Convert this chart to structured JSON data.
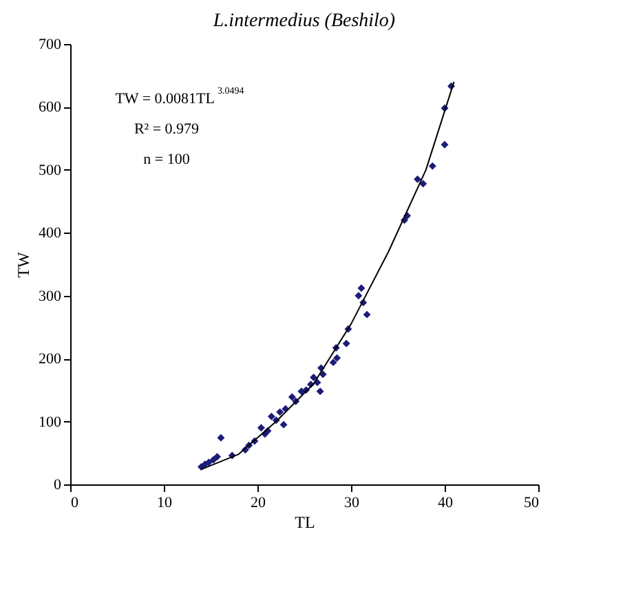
{
  "chart_data": {
    "type": "scatter",
    "title": "L.intermedius (Beshilo)",
    "xlabel": "TL",
    "ylabel": "TW",
    "xlim": [
      0,
      50
    ],
    "xticks": [
      0,
      10,
      20,
      30,
      40,
      50
    ],
    "ylim": [
      0,
      700
    ],
    "yticks": [
      0,
      100,
      200,
      300,
      400,
      500,
      600,
      700
    ],
    "grid": false,
    "marker": "diamond",
    "annotations": [
      "TW = 0.0081TL$^{3.0494}$",
      "R² = 0.979",
      "n = 100"
    ],
    "series": [
      {
        "color": "#1c1c7a",
        "x": [
          40.7,
          40.0,
          40.0,
          38.7,
          37.1,
          37.7,
          35.7,
          36.0,
          31.1,
          31.3,
          31.7,
          30.8,
          29.7,
          29.5,
          28.4,
          28.1,
          28.5,
          26.8,
          26.4,
          26.7,
          25.7,
          24.7,
          24.1,
          23.7,
          22.4,
          22.0,
          21.5,
          21.1,
          20.4,
          19.7,
          19.1,
          18.7,
          17.3,
          16.1,
          15.3,
          14.4,
          14.0,
          14.8,
          15.7,
          27.0,
          25.2,
          23.0,
          20.8,
          22.8,
          26.0
        ],
        "values": [
          633,
          598,
          540,
          506,
          485,
          478,
          420,
          427,
          312,
          289,
          270,
          300,
          247,
          224,
          217,
          194,
          201,
          185,
          162,
          148,
          159,
          148,
          132,
          139,
          115,
          102,
          108,
          85,
          90,
          69,
          62,
          55,
          46,
          74,
          39,
          32,
          28,
          35,
          44,
          175,
          150,
          120,
          80,
          95,
          170
        ]
      },
      {
        "type": "line",
        "color": "#000000",
        "line_style": "solid",
        "marker": "none",
        "x": [
          14,
          18,
          22,
          26,
          30,
          34,
          38,
          41
        ],
        "values": [
          24,
          48,
          100,
          160,
          255,
          370,
          500,
          640
        ]
      }
    ]
  }
}
